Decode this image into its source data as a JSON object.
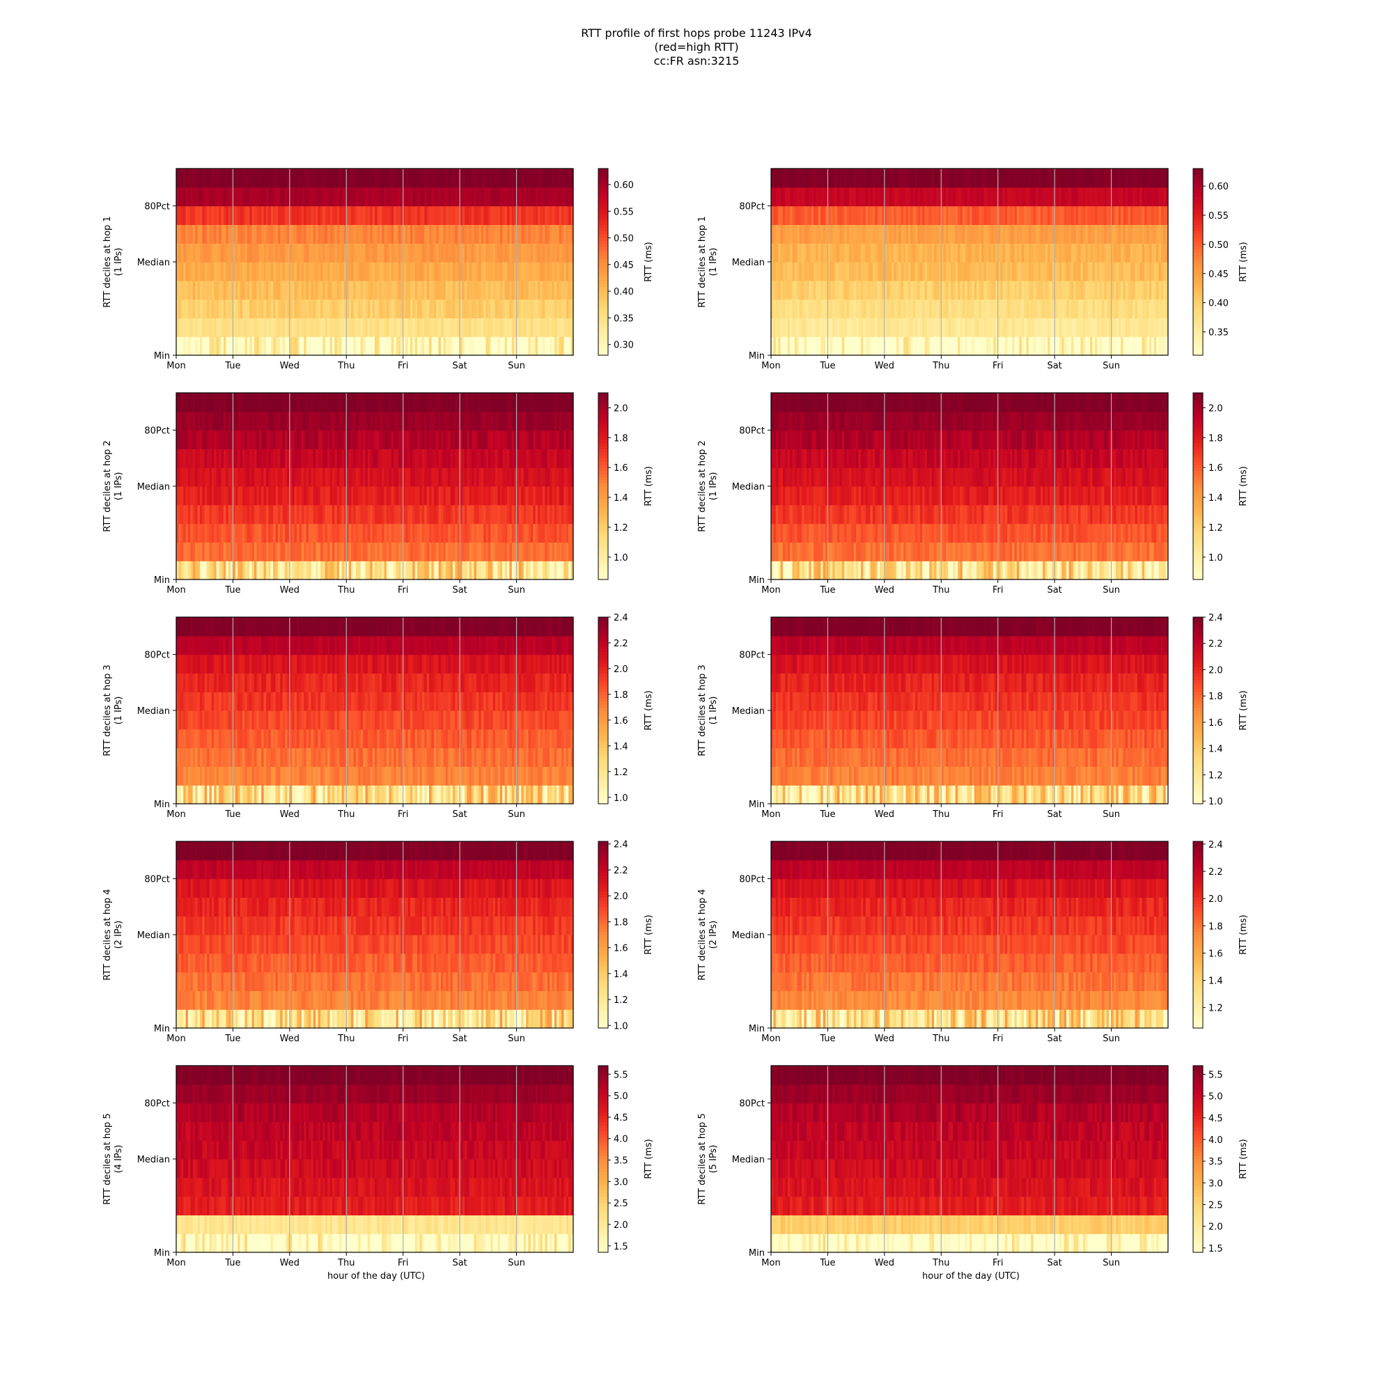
{
  "figure": {
    "title_lines": [
      "RTT profile of first hops probe 11243 IPv4",
      "(red=high RTT)",
      "cc:FR asn:3215"
    ]
  },
  "chart_data": [
    {
      "type": "heatmap",
      "ylabel": "RTT deciles at hop 1",
      "ylabel2": "(1 IPs)",
      "xlabel": "",
      "x_ticks": [
        "Mon",
        "Tue",
        "Wed",
        "Thu",
        "Fri",
        "Sat",
        "Sun"
      ],
      "y_ticks": [
        "Min",
        "Median",
        "80Pct"
      ],
      "colorbar": {
        "label": "RTT (ms)",
        "min": 0.28,
        "max": 0.63,
        "ticks": [
          0.3,
          0.35,
          0.4,
          0.45,
          0.5,
          0.55,
          0.6
        ]
      },
      "band_values": [
        0.3,
        0.35,
        0.38,
        0.4,
        0.42,
        0.44,
        0.46,
        0.52,
        0.6,
        0.63
      ],
      "cmap": "YlOrRd",
      "vgrid": true
    },
    {
      "type": "heatmap",
      "ylabel": "RTT deciles at hop 1",
      "ylabel2": "(1 IPs)",
      "xlabel": "",
      "x_ticks": [
        "Mon",
        "Tue",
        "Wed",
        "Thu",
        "Fri",
        "Sat",
        "Sun"
      ],
      "y_ticks": [
        "Min",
        "Median",
        "80Pct"
      ],
      "colorbar": {
        "label": "RTT (ms)",
        "min": 0.31,
        "max": 0.63,
        "ticks": [
          0.35,
          0.4,
          0.45,
          0.5,
          0.55,
          0.6
        ]
      },
      "band_values": [
        0.32,
        0.36,
        0.38,
        0.4,
        0.42,
        0.43,
        0.45,
        0.5,
        0.58,
        0.63
      ],
      "cmap": "YlOrRd",
      "vgrid": true
    },
    {
      "type": "heatmap",
      "ylabel": "RTT deciles at hop 2",
      "ylabel2": "(1 IPs)",
      "xlabel": "",
      "x_ticks": [
        "Mon",
        "Tue",
        "Wed",
        "Thu",
        "Fri",
        "Sat",
        "Sun"
      ],
      "y_ticks": [
        "Min",
        "Median",
        "80Pct"
      ],
      "colorbar": {
        "label": "RTT (ms)",
        "min": 0.85,
        "max": 2.1,
        "ticks": [
          1.0,
          1.2,
          1.4,
          1.6,
          1.8,
          2.0
        ]
      },
      "band_values": [
        1.15,
        1.55,
        1.62,
        1.7,
        1.78,
        1.84,
        1.9,
        1.97,
        2.03,
        2.1
      ],
      "cmap": "YlOrRd",
      "vgrid": true
    },
    {
      "type": "heatmap",
      "ylabel": "RTT deciles at hop 2",
      "ylabel2": "(1 IPs)",
      "xlabel": "",
      "x_ticks": [
        "Mon",
        "Tue",
        "Wed",
        "Thu",
        "Fri",
        "Sat",
        "Sun"
      ],
      "y_ticks": [
        "Min",
        "Median",
        "80Pct"
      ],
      "colorbar": {
        "label": "RTT (ms)",
        "min": 0.85,
        "max": 2.1,
        "ticks": [
          1.0,
          1.2,
          1.4,
          1.6,
          1.8,
          2.0
        ]
      },
      "band_values": [
        1.15,
        1.55,
        1.62,
        1.7,
        1.78,
        1.84,
        1.9,
        1.97,
        2.03,
        2.1
      ],
      "cmap": "YlOrRd",
      "vgrid": true
    },
    {
      "type": "heatmap",
      "ylabel": "RTT deciles at hop 3",
      "ylabel2": "(1 IPs)",
      "xlabel": "",
      "x_ticks": [
        "Mon",
        "Tue",
        "Wed",
        "Thu",
        "Fri",
        "Sat",
        "Sun"
      ],
      "y_ticks": [
        "Min",
        "Median",
        "80Pct"
      ],
      "colorbar": {
        "label": "RTT (ms)",
        "min": 0.95,
        "max": 2.4,
        "ticks": [
          1.0,
          1.2,
          1.4,
          1.6,
          1.8,
          2.0,
          2.2,
          2.4
        ]
      },
      "band_values": [
        1.35,
        1.7,
        1.76,
        1.82,
        1.88,
        1.94,
        2.0,
        2.08,
        2.22,
        2.4
      ],
      "cmap": "YlOrRd",
      "vgrid": true
    },
    {
      "type": "heatmap",
      "ylabel": "RTT deciles at hop 3",
      "ylabel2": "(1 IPs)",
      "xlabel": "",
      "x_ticks": [
        "Mon",
        "Tue",
        "Wed",
        "Thu",
        "Fri",
        "Sat",
        "Sun"
      ],
      "y_ticks": [
        "Min",
        "Median",
        "80Pct"
      ],
      "colorbar": {
        "label": "RTT (ms)",
        "min": 0.98,
        "max": 2.4,
        "ticks": [
          1.0,
          1.2,
          1.4,
          1.6,
          1.8,
          2.0,
          2.2,
          2.4
        ]
      },
      "band_values": [
        1.35,
        1.72,
        1.78,
        1.84,
        1.9,
        1.96,
        2.02,
        2.1,
        2.22,
        2.4
      ],
      "cmap": "YlOrRd",
      "vgrid": true
    },
    {
      "type": "heatmap",
      "ylabel": "RTT deciles at hop 4",
      "ylabel2": "(2 IPs)",
      "xlabel": "",
      "x_ticks": [
        "Mon",
        "Tue",
        "Wed",
        "Thu",
        "Fri",
        "Sat",
        "Sun"
      ],
      "y_ticks": [
        "Min",
        "Median",
        "80Pct"
      ],
      "colorbar": {
        "label": "RTT (ms)",
        "min": 0.98,
        "max": 2.42,
        "ticks": [
          1.0,
          1.2,
          1.4,
          1.6,
          1.8,
          2.0,
          2.2,
          2.4
        ]
      },
      "band_values": [
        1.35,
        1.72,
        1.78,
        1.84,
        1.9,
        1.96,
        2.02,
        2.1,
        2.22,
        2.42
      ],
      "cmap": "YlOrRd",
      "vgrid": true
    },
    {
      "type": "heatmap",
      "ylabel": "RTT deciles at hop 4",
      "ylabel2": "(2 IPs)",
      "xlabel": "",
      "x_ticks": [
        "Mon",
        "Tue",
        "Wed",
        "Thu",
        "Fri",
        "Sat",
        "Sun"
      ],
      "y_ticks": [
        "Min",
        "Median",
        "80Pct"
      ],
      "colorbar": {
        "label": "RTT (ms)",
        "min": 1.05,
        "max": 2.42,
        "ticks": [
          1.2,
          1.4,
          1.6,
          1.8,
          2.0,
          2.2,
          2.4
        ]
      },
      "band_values": [
        1.4,
        1.74,
        1.8,
        1.86,
        1.92,
        1.98,
        2.04,
        2.12,
        2.24,
        2.42
      ],
      "cmap": "YlOrRd",
      "vgrid": true
    },
    {
      "type": "heatmap",
      "ylabel": "RTT deciles at hop 5",
      "ylabel2": "(4 IPs)",
      "xlabel": "hour of the day (UTC)",
      "x_ticks": [
        "Mon",
        "Tue",
        "Wed",
        "Thu",
        "Fri",
        "Sat",
        "Sun"
      ],
      "y_ticks": [
        "Min",
        "Median",
        "80Pct"
      ],
      "colorbar": {
        "label": "RTT (ms)",
        "min": 1.35,
        "max": 5.7,
        "ticks": [
          1.5,
          2.0,
          2.5,
          3.0,
          3.5,
          4.0,
          4.5,
          5.0,
          5.5
        ]
      },
      "band_values": [
        1.6,
        2.1,
        4.6,
        4.75,
        4.9,
        5.0,
        5.1,
        5.25,
        5.45,
        5.7
      ],
      "cmap": "YlOrRd",
      "vgrid": true
    },
    {
      "type": "heatmap",
      "ylabel": "RTT deciles at hop 5",
      "ylabel2": "(5 IPs)",
      "xlabel": "hour of the day (UTC)",
      "x_ticks": [
        "Mon",
        "Tue",
        "Wed",
        "Thu",
        "Fri",
        "Sat",
        "Sun"
      ],
      "y_ticks": [
        "Min",
        "Median",
        "80Pct"
      ],
      "colorbar": {
        "label": "RTT (ms)",
        "min": 1.4,
        "max": 5.7,
        "ticks": [
          1.5,
          2.0,
          2.5,
          3.0,
          3.5,
          4.0,
          4.5,
          5.0,
          5.5
        ]
      },
      "band_values": [
        1.6,
        2.6,
        4.6,
        4.75,
        4.9,
        5.0,
        5.1,
        5.25,
        5.45,
        5.7
      ],
      "cmap": "YlOrRd",
      "vgrid": true
    }
  ]
}
